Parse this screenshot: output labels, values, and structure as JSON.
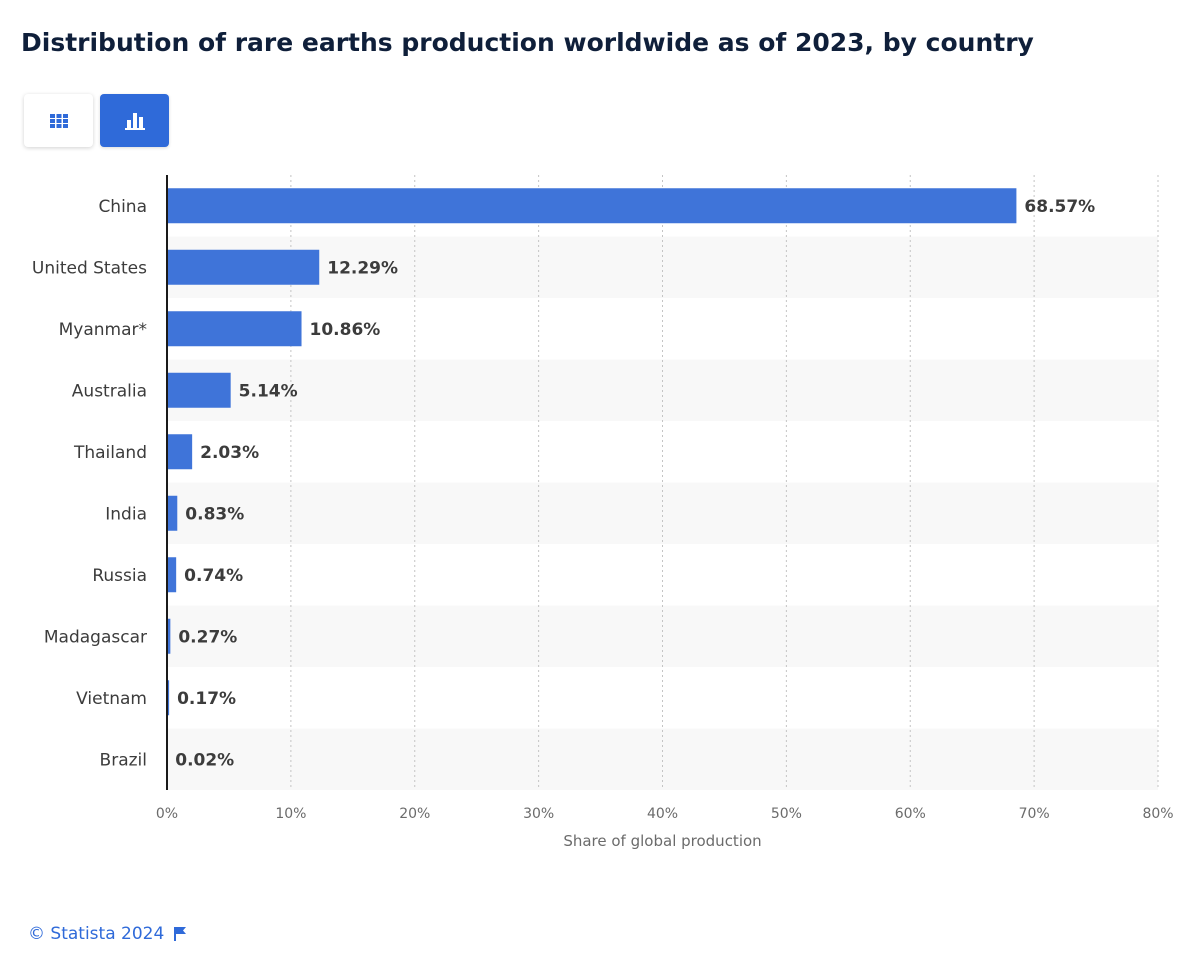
{
  "page": {
    "title": "Distribution of rare earths production worldwide as of 2023, by country",
    "copyright": "© Statista 2024"
  },
  "toolbar": {
    "table_view_icon": "grid-icon",
    "chart_view_icon": "bar-chart-icon",
    "active_view": "chart"
  },
  "colors": {
    "bar": "#3f74d9",
    "accent": "#2f6ad9",
    "title": "#0f1f3a",
    "stripe": "#f8f8f8"
  },
  "chart_data": {
    "type": "bar",
    "orientation": "horizontal",
    "title": "Distribution of rare earths production worldwide as of 2023, by country",
    "xlabel": "Share of global production",
    "ylabel": "",
    "xlim": [
      0,
      80
    ],
    "x_ticks": [
      "0%",
      "10%",
      "20%",
      "30%",
      "40%",
      "50%",
      "60%",
      "70%",
      "80%"
    ],
    "grid": true,
    "categories": [
      "China",
      "United States",
      "Myanmar*",
      "Australia",
      "Thailand",
      "India",
      "Russia",
      "Madagascar",
      "Vietnam",
      "Brazil"
    ],
    "values": [
      68.57,
      12.29,
      10.86,
      5.14,
      2.03,
      0.83,
      0.74,
      0.27,
      0.17,
      0.02
    ],
    "value_labels": [
      "68.57%",
      "12.29%",
      "10.86%",
      "5.14%",
      "2.03%",
      "0.83%",
      "0.74%",
      "0.27%",
      "0.17%",
      "0.02%"
    ]
  }
}
